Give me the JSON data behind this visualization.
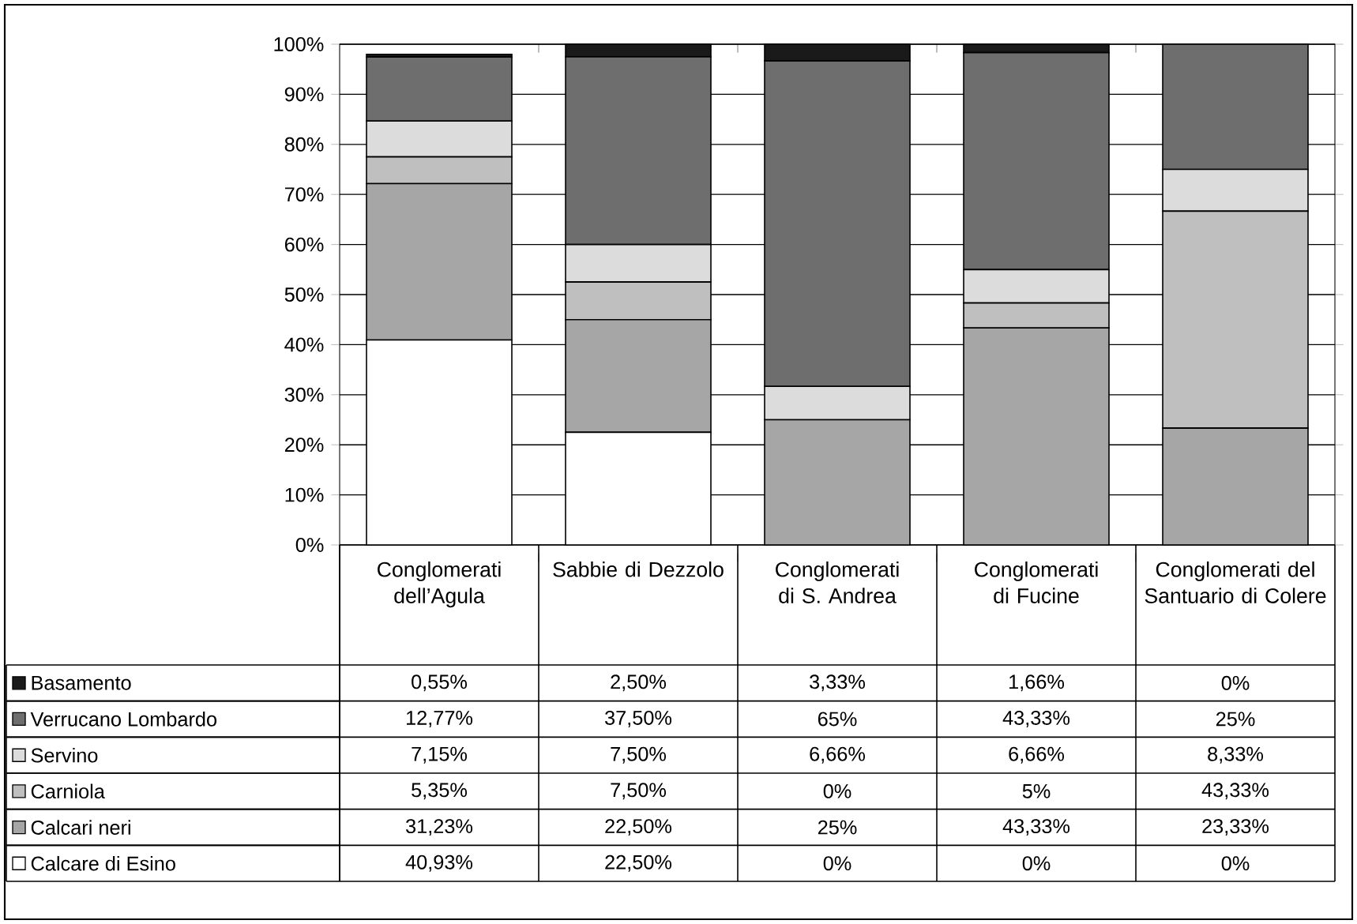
{
  "chart_data": {
    "type": "bar",
    "stacked": true,
    "categories": [
      "Conglomerati dell’Agula",
      "Sabbie di Dezzolo",
      "Conglomerati di S. Andrea",
      "Conglomerati di Fucine",
      "Conglomerati del Santuario di Colere"
    ],
    "ylim": [
      0,
      100
    ],
    "yticks": [
      {
        "value": 0,
        "label": "0%"
      },
      {
        "value": 10,
        "label": "10%"
      },
      {
        "value": 20,
        "label": "20%"
      },
      {
        "value": 30,
        "label": "30%"
      },
      {
        "value": 40,
        "label": "40%"
      },
      {
        "value": 50,
        "label": "50%"
      },
      {
        "value": 60,
        "label": "60%"
      },
      {
        "value": 70,
        "label": "70%"
      },
      {
        "value": 80,
        "label": "80%"
      },
      {
        "value": 90,
        "label": "90%"
      },
      {
        "value": 100,
        "label": "100%"
      }
    ],
    "grid": "y",
    "legend": "bottom left",
    "series": [
      {
        "name": "Calcare di Esino",
        "color": "#ffffff",
        "values": [
          40.93,
          22.5,
          0,
          0,
          0
        ],
        "value_labels": [
          "40,93%",
          "22,50%",
          "0%",
          "0%",
          "0%"
        ]
      },
      {
        "name": "Calcari neri",
        "color": "#a6a6a6",
        "values": [
          31.23,
          22.5,
          25,
          43.33,
          23.33
        ],
        "value_labels": [
          "31,23%",
          "22,50%",
          "25%",
          "43,33%",
          "23,33%"
        ]
      },
      {
        "name": "Carniola",
        "color": "#bfbfbf",
        "values": [
          5.35,
          7.5,
          0,
          5,
          43.33
        ],
        "value_labels": [
          "5,35%",
          "7,50%",
          "0%",
          "5%",
          "43,33%"
        ]
      },
      {
        "name": "Servino",
        "color": "#dcdcdc",
        "values": [
          7.15,
          7.5,
          6.66,
          6.66,
          8.33
        ],
        "value_labels": [
          "7,15%",
          "7,50%",
          "6,66%",
          "6,66%",
          "8,33%"
        ]
      },
      {
        "name": "Verrucano Lombardo",
        "color": "#6e6e6e",
        "values": [
          12.77,
          37.5,
          65,
          43.33,
          25
        ],
        "value_labels": [
          "12,77%",
          "37,50%",
          "65%",
          "43,33%",
          "25%"
        ]
      },
      {
        "name": "Basamento",
        "color": "#1a1a1a",
        "values": [
          0.55,
          2.5,
          3.33,
          1.66,
          0
        ],
        "value_labels": [
          "0,55%",
          "2,50%",
          "3,33%",
          "1,66%",
          "0%"
        ]
      }
    ]
  }
}
